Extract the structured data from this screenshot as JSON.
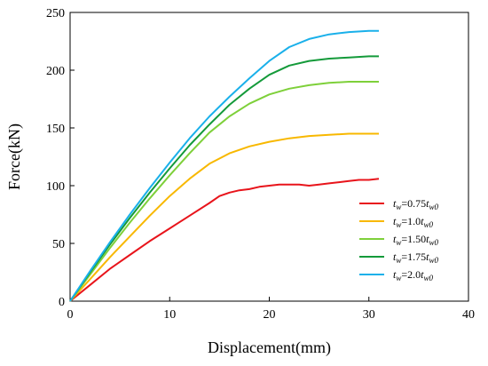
{
  "chart_data": {
    "type": "line",
    "title": "",
    "xlabel": "Displacement(mm)",
    "ylabel": "Force(kN)",
    "xlim": [
      0,
      40
    ],
    "ylim": [
      0,
      250
    ],
    "xticks": [
      0,
      10,
      20,
      30,
      40
    ],
    "yticks": [
      0,
      50,
      100,
      150,
      200,
      250
    ],
    "grid": false,
    "legend_position": "right",
    "series": [
      {
        "name": "t",
        "legend_parts": {
          "var": "t",
          "sub": "w",
          "eq": "=0.75",
          "var2": "t",
          "sub2": "w0"
        },
        "color": "#e8141b",
        "x": [
          0,
          2,
          4,
          6,
          8,
          10,
          12,
          14,
          15,
          16,
          17,
          18,
          19,
          20,
          21,
          22,
          23,
          24,
          25,
          26,
          27,
          28,
          29,
          30,
          31
        ],
        "y": [
          0,
          14,
          28,
          40,
          52,
          63,
          74,
          85,
          91,
          94,
          96,
          97,
          99,
          100,
          101,
          101,
          101,
          100,
          101,
          102,
          103,
          104,
          105,
          105,
          106
        ]
      },
      {
        "name": "t",
        "legend_parts": {
          "var": "t",
          "sub": "w",
          "eq": "=1.0",
          "var2": "t",
          "sub2": "w0"
        },
        "color": "#f8b800",
        "x": [
          0,
          2,
          4,
          6,
          8,
          10,
          12,
          14,
          16,
          18,
          20,
          22,
          24,
          26,
          28,
          30,
          31
        ],
        "y": [
          0,
          19,
          38,
          56,
          74,
          91,
          106,
          119,
          128,
          134,
          138,
          141,
          143,
          144,
          145,
          145,
          145
        ]
      },
      {
        "name": "t",
        "legend_parts": {
          "var": "t",
          "sub": "w",
          "eq": "=1.50",
          "var2": "t",
          "sub2": "w0"
        },
        "color": "#7ed03a",
        "x": [
          0,
          2,
          4,
          6,
          8,
          10,
          12,
          14,
          16,
          18,
          20,
          22,
          24,
          26,
          28,
          30,
          31
        ],
        "y": [
          0,
          23,
          46,
          68,
          89,
          109,
          128,
          146,
          160,
          171,
          179,
          184,
          187,
          189,
          190,
          190,
          190
        ]
      },
      {
        "name": "t",
        "legend_parts": {
          "var": "t",
          "sub": "w",
          "eq": "=1.75",
          "var2": "t",
          "sub2": "w0"
        },
        "color": "#149a3a",
        "x": [
          0,
          2,
          4,
          6,
          8,
          10,
          12,
          14,
          16,
          18,
          20,
          22,
          24,
          26,
          28,
          30,
          31
        ],
        "y": [
          0,
          25,
          49,
          72,
          94,
          115,
          135,
          153,
          170,
          184,
          196,
          204,
          208,
          210,
          211,
          212,
          212
        ]
      },
      {
        "name": "t",
        "legend_parts": {
          "var": "t",
          "sub": "w",
          "eq": "=2.0",
          "var2": "t",
          "sub2": "w0"
        },
        "color": "#1ab0ea",
        "x": [
          0,
          2,
          4,
          6,
          8,
          10,
          12,
          14,
          16,
          18,
          20,
          22,
          24,
          26,
          28,
          30,
          31
        ],
        "y": [
          0,
          26,
          51,
          75,
          98,
          120,
          141,
          160,
          177,
          193,
          208,
          220,
          227,
          231,
          233,
          234,
          234
        ]
      }
    ]
  }
}
